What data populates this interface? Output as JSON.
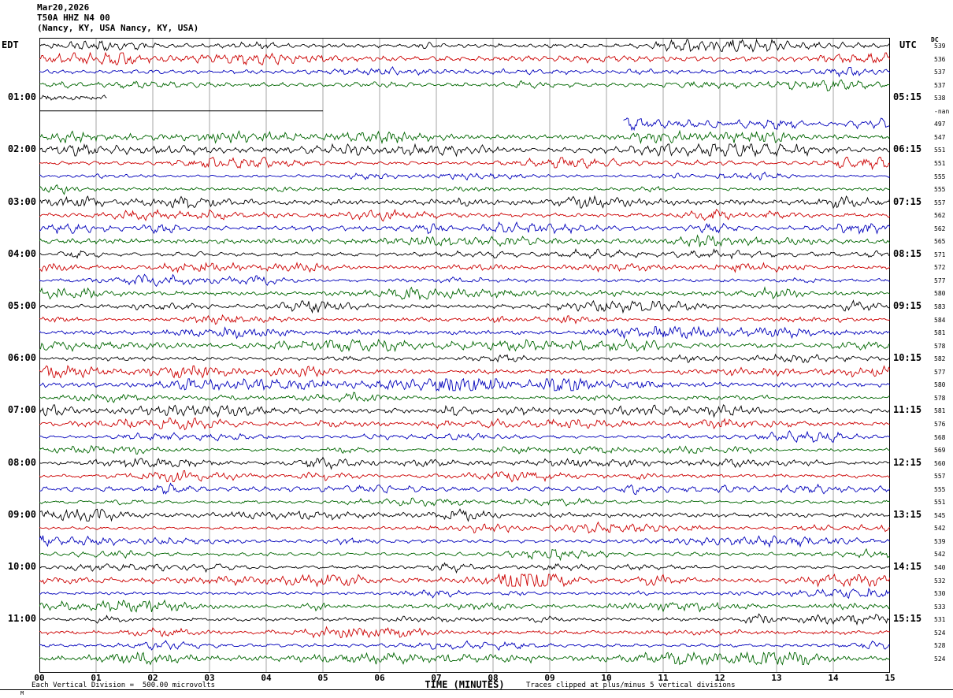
{
  "header": {
    "date": "Mar20,2026",
    "station": "T50A HHZ N4 00",
    "location": "(Nancy, KY, USA Nancy, KY, USA)",
    "left_tz": "EDT",
    "right_tz": "UTC",
    "dc_label": "DC"
  },
  "xaxis": {
    "title": "TIME (MINUTES)",
    "ticks": [
      "00",
      "01",
      "02",
      "03",
      "04",
      "05",
      "06",
      "07",
      "08",
      "09",
      "10",
      "11",
      "12",
      "13",
      "14",
      "15"
    ]
  },
  "footer": {
    "scale_note": "Each Vertical Division =  500.00 microvolts",
    "clip_note": "Traces clipped at plus/minus 5 vertical divisions",
    "corner_mark": "M"
  },
  "chart_data": {
    "type": "line",
    "subtype": "helicorder-seismogram",
    "title": "T50A HHZ N4 00 (Nancy, KY, USA Nancy, KY, USA) Mar20,2026",
    "xlabel": "TIME (MINUTES)",
    "x_range_minutes": [
      0,
      15
    ],
    "minutes_per_trace": 15,
    "traces_per_hour": 4,
    "num_traces": 48,
    "grid_minutes": 1,
    "grid_on": true,
    "left_time_zone": "EDT",
    "right_time_zone": "UTC",
    "hour_marks": [
      {
        "row": 4,
        "edt": "01:00",
        "utc": "05:15"
      },
      {
        "row": 8,
        "edt": "02:00",
        "utc": "06:15"
      },
      {
        "row": 12,
        "edt": "03:00",
        "utc": "07:15"
      },
      {
        "row": 16,
        "edt": "04:00",
        "utc": "08:15"
      },
      {
        "row": 20,
        "edt": "05:00",
        "utc": "09:15"
      },
      {
        "row": 24,
        "edt": "06:00",
        "utc": "10:15"
      },
      {
        "row": 28,
        "edt": "07:00",
        "utc": "11:15"
      },
      {
        "row": 32,
        "edt": "08:00",
        "utc": "12:15"
      },
      {
        "row": 36,
        "edt": "09:00",
        "utc": "13:15"
      },
      {
        "row": 40,
        "edt": "10:00",
        "utc": "14:15"
      },
      {
        "row": 44,
        "edt": "11:00",
        "utc": "15:15"
      }
    ],
    "trace_color_cycle": [
      "#000000",
      "#cc0000",
      "#0000bb",
      "#006600"
    ],
    "dc_offsets": [
      539,
      536,
      537,
      537,
      538,
      "-nan",
      497,
      547,
      551,
      551,
      555,
      555,
      557,
      562,
      562,
      565,
      571,
      572,
      577,
      580,
      583,
      584,
      581,
      578,
      582,
      577,
      580,
      578,
      581,
      576,
      568,
      569,
      560,
      557,
      555,
      551,
      545,
      542,
      539,
      542,
      540,
      532,
      530,
      533,
      531,
      524,
      528,
      524
    ],
    "gaps": [
      {
        "row": 4,
        "segments": [
          [
            0,
            1.2
          ]
        ]
      },
      {
        "row": 5,
        "segments": [],
        "flat": [
          0,
          5
        ]
      },
      {
        "row": 6,
        "segments": [
          [
            10.3,
            15
          ]
        ]
      }
    ],
    "flat_color": "#000000",
    "grid_color": "#808080",
    "scale_note": "Each Vertical Division = 500.00 microvolts",
    "clip_note": "Traces clipped at plus/minus 5 vertical divisions"
  }
}
